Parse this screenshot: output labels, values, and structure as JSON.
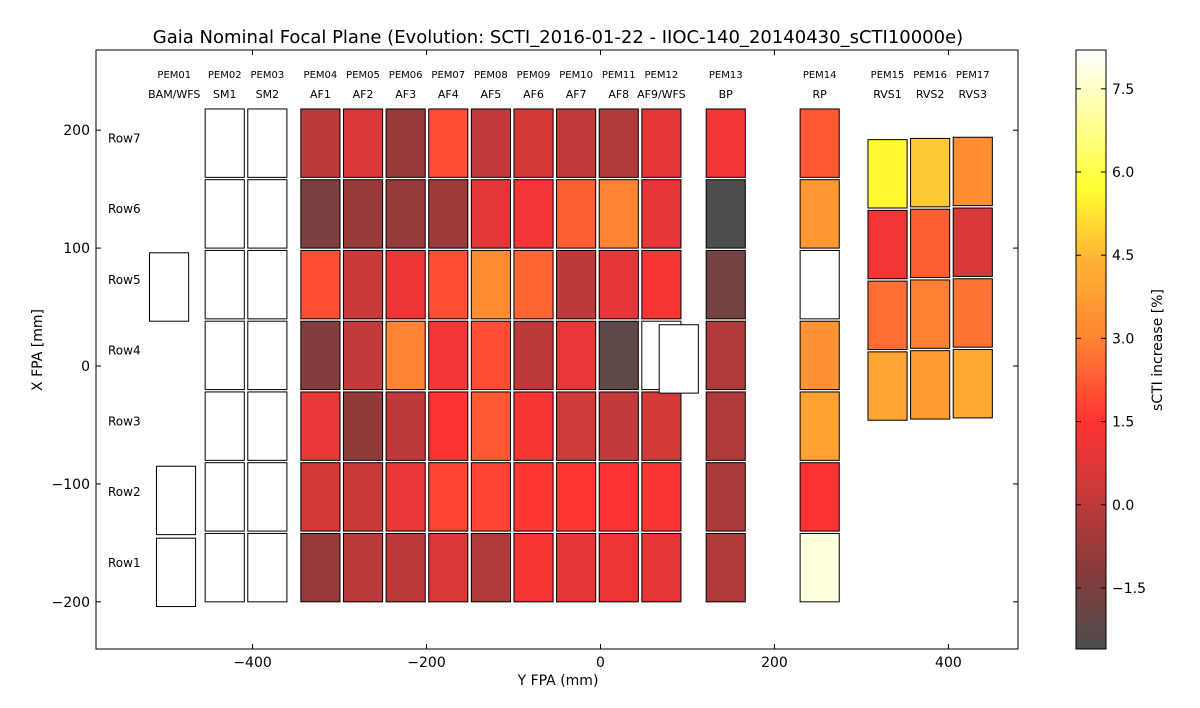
{
  "chart_data": {
    "type": "heatmap",
    "title": "Gaia Nominal Focal Plane (Evolution: SCTI_2016-01-22 - IIOC-140_20140430_sCTI10000e)",
    "xlabel": "Y FPA (mm)",
    "ylabel": "X FPA [mm]",
    "xlim": [
      -580,
      480
    ],
    "ylim": [
      -240,
      268
    ],
    "xticks": [
      -400,
      -200,
      0,
      200,
      400
    ],
    "xtick_labels": [
      "−400",
      "−200",
      "0",
      "200",
      "400"
    ],
    "yticks": [
      -200,
      -100,
      0,
      100,
      200
    ],
    "ytick_labels": [
      "−200",
      "−100",
      "0",
      "100",
      "200"
    ],
    "colorbar": {
      "label": "sCTI increase [%]",
      "range": [
        -2.6,
        8.2
      ],
      "ticks": [
        -1.5,
        0.0,
        1.5,
        3.0,
        4.5,
        6.0,
        7.5
      ],
      "tick_labels": [
        "−1.5",
        "0.0",
        "1.5",
        "3.0",
        "4.5",
        "6.0",
        "7.5"
      ]
    },
    "rows": [
      "Row7",
      "Row6",
      "Row5",
      "Row4",
      "Row3",
      "Row2",
      "Row1"
    ],
    "columns": [
      {
        "pem": "PEM01",
        "name": "BAM/WFS",
        "y": -490
      },
      {
        "pem": "PEM02",
        "name": "SM1",
        "y": -432
      },
      {
        "pem": "PEM03",
        "name": "SM2",
        "y": -383
      },
      {
        "pem": "PEM04",
        "name": "AF1",
        "y": -322
      },
      {
        "pem": "PEM05",
        "name": "AF2",
        "y": -273
      },
      {
        "pem": "PEM06",
        "name": "AF3",
        "y": -224
      },
      {
        "pem": "PEM07",
        "name": "AF4",
        "y": -175
      },
      {
        "pem": "PEM08",
        "name": "AF5",
        "y": -126
      },
      {
        "pem": "PEM09",
        "name": "AF6",
        "y": -77
      },
      {
        "pem": "PEM10",
        "name": "AF7",
        "y": -28
      },
      {
        "pem": "PEM11",
        "name": "AF8",
        "y": 21
      },
      {
        "pem": "PEM12",
        "name": "AF9/WFS",
        "y": 70
      },
      {
        "pem": "PEM13",
        "name": "BP",
        "y": 144
      },
      {
        "pem": "PEM14",
        "name": "RP",
        "y": 252
      },
      {
        "pem": "PEM15",
        "name": "RVS1",
        "y": 330
      },
      {
        "pem": "PEM16",
        "name": "RVS2",
        "y": 379
      },
      {
        "pem": "PEM17",
        "name": "RVS3",
        "y": 428
      }
    ],
    "values_note": "sCTI increase [%] per CCD; columns AF1..RP; rows Row7 (top) to Row1 (bottom); null = no data (white)",
    "values": {
      "AF1": [
        0.0,
        -1.5,
        2.0,
        -1.3,
        1.0,
        0.5,
        -0.8
      ],
      "AF2": [
        0.6,
        -0.8,
        0.3,
        0.1,
        -1.0,
        0.3,
        0.0
      ],
      "AF3": [
        -0.8,
        -0.9,
        1.1,
        3.0,
        0.0,
        1.0,
        0.0
      ],
      "AF4": [
        2.0,
        -0.7,
        2.0,
        1.2,
        1.5,
        1.8,
        0.6
      ],
      "AF5": [
        0.1,
        0.8,
        3.2,
        2.0,
        2.2,
        1.8,
        -0.3
      ],
      "AF6": [
        0.5,
        1.2,
        2.4,
        0.0,
        1.3,
        1.6,
        1.3
      ],
      "AF7": [
        0.1,
        2.3,
        0.0,
        1.0,
        0.4,
        1.6,
        0.9
      ],
      "AF8": [
        -0.3,
        3.0,
        0.9,
        -2.2,
        0.1,
        1.5,
        1.1
      ],
      "AF9/WFS": [
        0.9,
        0.9,
        1.3,
        null,
        0.5,
        1.4,
        0.9
      ],
      "BP": [
        1.2,
        -2.6,
        -1.7,
        -0.3,
        -0.3,
        -0.4,
        -0.3
      ],
      "RP": [
        2.2,
        3.6,
        null,
        3.4,
        3.9,
        1.5,
        7.8
      ]
    },
    "values_rvs_note": "RVS CCDs are offset in X; rows listed top to bottom",
    "values_rvs": {
      "RVS1": [
        5.6,
        1.2,
        2.6,
        4.0
      ],
      "RVS2": [
        4.8,
        2.3,
        2.9,
        3.7
      ],
      "RVS3": [
        3.3,
        0.6,
        2.7,
        4.1
      ]
    },
    "empty_ccds": [
      "BAM/WFS (2 CCDs)",
      "WFS (3 CCDs)",
      "SM1 (7 CCDs)",
      "SM2 (7 CCDs)",
      "AF9/WFS Row4 (offset)"
    ]
  }
}
